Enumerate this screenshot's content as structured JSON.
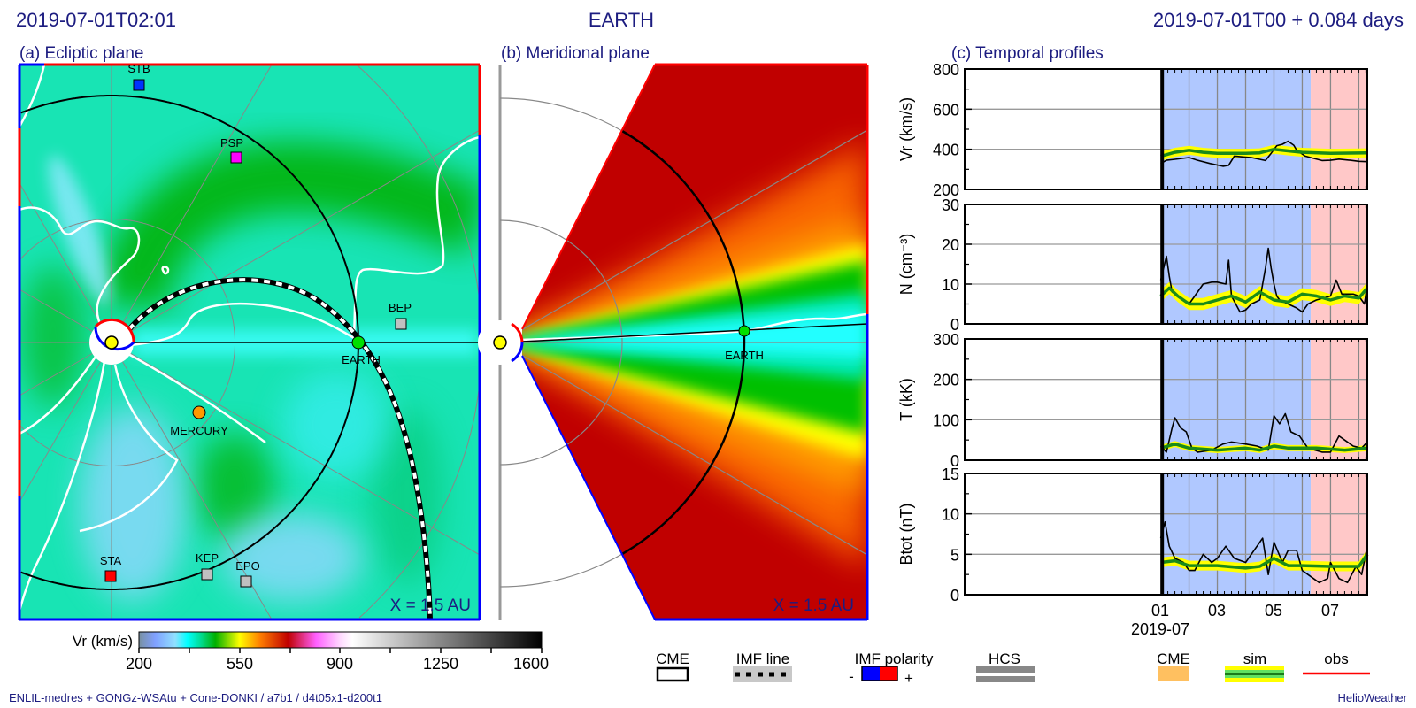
{
  "header": {
    "time": "2019-07-01T02:01",
    "target": "EARTH",
    "elapsed": "2019-07-01T00 +  0.084 days"
  },
  "panels": {
    "a_title": "(a) Ecliptic plane",
    "b_title": "(b) Meridional plane",
    "c_title": "(c) Temporal profiles",
    "a_scale": "X = 1.5 AU",
    "b_scale": "X = 1.5 AU"
  },
  "bodies": {
    "stb": "STB",
    "psp": "PSP",
    "bep": "BEP",
    "earth": "EARTH",
    "mercury": "MERCURY",
    "sta": "STA",
    "kep": "KEP",
    "epo": "EPO",
    "earth_b": "EARTH"
  },
  "colors": {
    "stb": "#0033ff",
    "psp": "#ff00ff",
    "bep": "#c0c0c0",
    "earth": "#00e000",
    "mercury": "#ff9900",
    "sta": "#ff0000",
    "kep": "#c0c0c0",
    "epo": "#c0c0c0",
    "title": "#1c1c80",
    "obs": "#000000",
    "sim": "#1a8a1a",
    "sim_band": "#ffff00",
    "cme_region": "#ffc060",
    "past_region": "#b0c8ff",
    "future_region": "#ffc8c8"
  },
  "colorbar": {
    "label": "Vr (km/s)",
    "ticks": [
      "200",
      "550",
      "900",
      "1250",
      "1600"
    ],
    "range": [
      200,
      1600
    ]
  },
  "legend": {
    "cme": "CME",
    "imf_line": "IMF line",
    "imf_polarity": "IMF polarity",
    "minus": "-",
    "plus": "+",
    "hcs": "HCS",
    "cme_c": "CME",
    "sim": "sim",
    "obs": "obs"
  },
  "footer": {
    "model": "ENLIL-medres + GONGz-WSAtu + Cone-DONKI / a7b1 / d4t05x1-d200t1",
    "brand": "HelioWeather"
  },
  "chart_data": {
    "type": "line",
    "title": "(c) Temporal profiles",
    "xlabel": "2019-07",
    "x_units": "days since 2019-07-01T00",
    "xlim": [
      -6.93,
      7.3
    ],
    "x_ticks": [
      {
        "v": 0,
        "label": "01"
      },
      {
        "v": 2,
        "label": "03"
      },
      {
        "v": 4,
        "label": "05"
      },
      {
        "v": 6,
        "label": "07"
      }
    ],
    "current_time": 0.084,
    "future_start": 5.3,
    "panels": [
      {
        "ylabel": "Vr (km/s)",
        "ylim": [
          200,
          800
        ],
        "yticks": [
          "200",
          "400",
          "600",
          "800"
        ],
        "band": 15,
        "obs": [
          [
            0,
            329
          ],
          [
            0.2,
            345
          ],
          [
            0.5,
            350
          ],
          [
            1.0,
            359
          ],
          [
            1.3,
            345
          ],
          [
            1.75,
            329
          ],
          [
            2.2,
            315
          ],
          [
            2.4,
            320
          ],
          [
            2.6,
            366
          ],
          [
            2.9,
            362
          ],
          [
            3.2,
            359
          ],
          [
            3.7,
            344
          ],
          [
            3.9,
            380
          ],
          [
            4.1,
            418
          ],
          [
            4.3,
            425
          ],
          [
            4.5,
            440
          ],
          [
            4.7,
            420
          ],
          [
            4.8,
            396
          ],
          [
            5.1,
            366
          ],
          [
            5.4,
            355
          ],
          [
            5.7,
            344
          ],
          [
            6.0,
            345
          ],
          [
            6.3,
            351
          ],
          [
            6.7,
            345
          ],
          [
            7.0,
            340
          ],
          [
            7.3,
            338
          ]
        ],
        "sim": [
          [
            0,
            365
          ],
          [
            0.5,
            385
          ],
          [
            1.0,
            395
          ],
          [
            1.5,
            385
          ],
          [
            2.0,
            380
          ],
          [
            3.0,
            380
          ],
          [
            3.5,
            382
          ],
          [
            4.0,
            400
          ],
          [
            4.5,
            392
          ],
          [
            5.0,
            385
          ],
          [
            6.0,
            380
          ],
          [
            7.3,
            382
          ]
        ]
      },
      {
        "ylabel": "N (cm⁻³)",
        "ylim": [
          0,
          30
        ],
        "yticks": [
          "0",
          "10",
          "20",
          "30"
        ],
        "band": 1,
        "obs": [
          [
            0,
            11
          ],
          [
            0.1,
            14
          ],
          [
            0.2,
            17
          ],
          [
            0.3,
            12
          ],
          [
            0.4,
            8
          ],
          [
            0.6,
            7
          ],
          [
            0.8,
            6
          ],
          [
            1.0,
            5
          ],
          [
            1.2,
            7
          ],
          [
            1.5,
            10
          ],
          [
            1.8,
            10.5
          ],
          [
            2.0,
            10.5
          ],
          [
            2.3,
            10
          ],
          [
            2.4,
            16
          ],
          [
            2.5,
            7
          ],
          [
            2.8,
            3
          ],
          [
            3.0,
            3.5
          ],
          [
            3.2,
            5
          ],
          [
            3.5,
            6
          ],
          [
            3.7,
            14
          ],
          [
            3.8,
            19
          ],
          [
            3.9,
            14
          ],
          [
            4.0,
            10
          ],
          [
            4.1,
            7
          ],
          [
            4.2,
            6
          ],
          [
            4.5,
            5
          ],
          [
            4.8,
            4
          ],
          [
            5.0,
            3
          ],
          [
            5.2,
            5
          ],
          [
            5.5,
            6
          ],
          [
            6.0,
            7
          ],
          [
            6.2,
            11
          ],
          [
            6.4,
            7.5
          ],
          [
            6.8,
            7.5
          ],
          [
            7.0,
            7
          ],
          [
            7.2,
            5
          ],
          [
            7.3,
            10
          ]
        ],
        "sim": [
          [
            0,
            7
          ],
          [
            0.3,
            9
          ],
          [
            0.6,
            7
          ],
          [
            1.0,
            5
          ],
          [
            1.5,
            5
          ],
          [
            2.0,
            6
          ],
          [
            2.5,
            7
          ],
          [
            3.0,
            5.5
          ],
          [
            3.5,
            8
          ],
          [
            4.0,
            6
          ],
          [
            4.5,
            5.5
          ],
          [
            5.0,
            7.5
          ],
          [
            5.5,
            7
          ],
          [
            6.0,
            6
          ],
          [
            6.5,
            7
          ],
          [
            7.0,
            6.5
          ],
          [
            7.3,
            9
          ]
        ]
      },
      {
        "ylabel": "T (kK)",
        "ylim": [
          0,
          300
        ],
        "yticks": [
          "0",
          "100",
          "200",
          "300"
        ],
        "band": 5,
        "obs": [
          [
            0,
            35
          ],
          [
            0.2,
            20
          ],
          [
            0.4,
            80
          ],
          [
            0.5,
            105
          ],
          [
            0.7,
            80
          ],
          [
            0.9,
            70
          ],
          [
            1.1,
            30
          ],
          [
            1.3,
            20
          ],
          [
            1.8,
            25
          ],
          [
            2.2,
            40
          ],
          [
            2.5,
            45
          ],
          [
            3.0,
            40
          ],
          [
            3.4,
            35
          ],
          [
            3.8,
            25
          ],
          [
            4.0,
            110
          ],
          [
            4.2,
            90
          ],
          [
            4.4,
            115
          ],
          [
            4.6,
            70
          ],
          [
            4.9,
            60
          ],
          [
            5.2,
            30
          ],
          [
            5.7,
            20
          ],
          [
            6.0,
            20
          ],
          [
            6.3,
            60
          ],
          [
            6.5,
            50
          ],
          [
            6.8,
            35
          ],
          [
            7.1,
            30
          ],
          [
            7.3,
            45
          ]
        ],
        "sim": [
          [
            0,
            30
          ],
          [
            0.5,
            40
          ],
          [
            1.0,
            30
          ],
          [
            2.0,
            25
          ],
          [
            3.0,
            30
          ],
          [
            3.5,
            25
          ],
          [
            4.0,
            35
          ],
          [
            4.5,
            30
          ],
          [
            5.5,
            30
          ],
          [
            6.5,
            25
          ],
          [
            7.3,
            30
          ]
        ]
      },
      {
        "ylabel": "Btot (nT)",
        "ylim": [
          0,
          15
        ],
        "yticks": [
          "0",
          "5",
          "10",
          "15"
        ],
        "band": 0.4,
        "obs": [
          [
            0,
            7
          ],
          [
            0.15,
            9
          ],
          [
            0.3,
            6
          ],
          [
            0.5,
            4.5
          ],
          [
            0.8,
            4
          ],
          [
            1.0,
            3
          ],
          [
            1.2,
            3
          ],
          [
            1.5,
            5
          ],
          [
            1.8,
            4
          ],
          [
            2.0,
            4.5
          ],
          [
            2.3,
            6
          ],
          [
            2.6,
            4.5
          ],
          [
            3.0,
            4
          ],
          [
            3.3,
            5.5
          ],
          [
            3.6,
            7
          ],
          [
            3.8,
            2.5
          ],
          [
            4.0,
            6.5
          ],
          [
            4.3,
            4
          ],
          [
            4.5,
            5.5
          ],
          [
            4.8,
            5.5
          ],
          [
            5.0,
            3
          ],
          [
            5.2,
            2.5
          ],
          [
            5.6,
            1.5
          ],
          [
            5.9,
            2
          ],
          [
            6.0,
            4
          ],
          [
            6.3,
            2
          ],
          [
            6.6,
            1.5
          ],
          [
            6.9,
            3.5
          ],
          [
            7.1,
            2.5
          ],
          [
            7.3,
            6
          ]
        ],
        "sim": [
          [
            0,
            4
          ],
          [
            0.5,
            4.2
          ],
          [
            1.0,
            3.6
          ],
          [
            2.0,
            3.6
          ],
          [
            3.0,
            3.3
          ],
          [
            3.5,
            3.5
          ],
          [
            4.0,
            4.5
          ],
          [
            4.5,
            3.6
          ],
          [
            5.0,
            3.6
          ],
          [
            6.0,
            3.5
          ],
          [
            7.0,
            3.5
          ],
          [
            7.3,
            5
          ]
        ]
      }
    ]
  }
}
